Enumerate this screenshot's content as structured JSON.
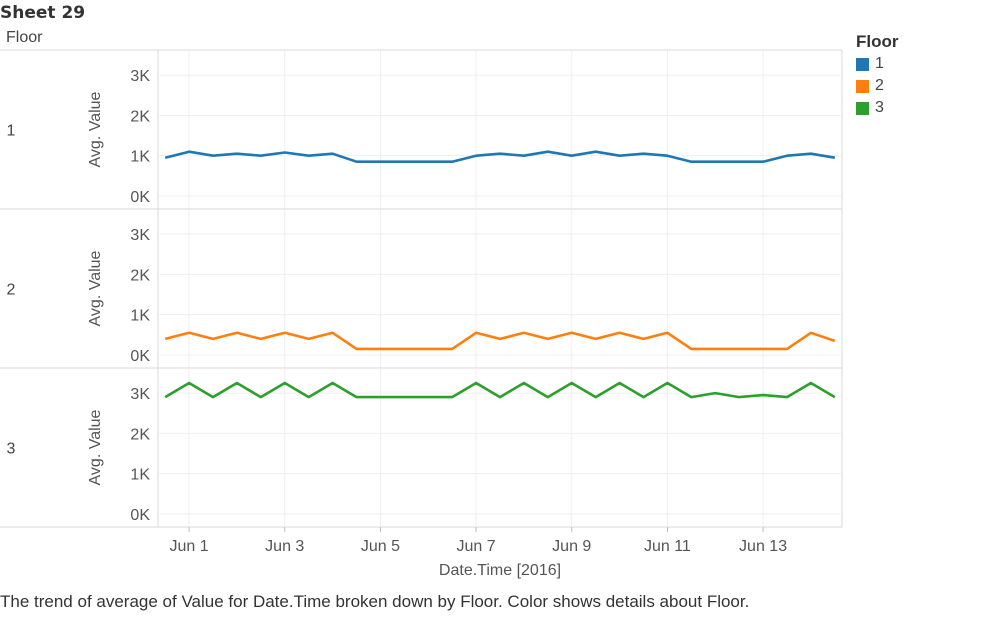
{
  "sheet": {
    "title": "Sheet 29",
    "row_header": "Floor",
    "caption": "The trend of average of Value for Date.Time broken down by Floor.  Color shows details about Floor."
  },
  "legend": {
    "title": "Floor",
    "items": [
      {
        "label": "1",
        "color": "#1f77b4"
      },
      {
        "label": "2",
        "color": "#ff7f0e"
      },
      {
        "label": "3",
        "color": "#2ca02c"
      }
    ]
  },
  "chart_data": {
    "type": "line",
    "title": "Sheet 29",
    "xlabel": "Date.Time [2016]",
    "ylabel": "Avg. Value",
    "x_ticks": [
      "Jun 1",
      "Jun 3",
      "Jun 5",
      "Jun 7",
      "Jun 9",
      "Jun 11",
      "Jun 13"
    ],
    "x_tick_days": [
      1,
      3,
      5,
      7,
      9,
      11,
      13
    ],
    "x_range_days": [
      30.35,
      14.65
    ],
    "ylim": [
      -100,
      3400
    ],
    "y_ticks": [
      0,
      1000,
      2000,
      3000
    ],
    "y_tick_labels": [
      "0K",
      "1K",
      "2K",
      "3K"
    ],
    "grid": true,
    "legend_position": "right",
    "panels": [
      {
        "label": "1",
        "name": "1",
        "color": "#1f77b4",
        "x": [
          "2016-05-31",
          "2016-05-31",
          "2016-06-01",
          "2016-06-01",
          "2016-06-02",
          "2016-06-02",
          "2016-06-03",
          "2016-06-03",
          "2016-06-04",
          "2016-06-04",
          "2016-06-05",
          "2016-06-05",
          "2016-06-06",
          "2016-06-06",
          "2016-06-07",
          "2016-06-07",
          "2016-06-08",
          "2016-06-08",
          "2016-06-09",
          "2016-06-09",
          "2016-06-10",
          "2016-06-10",
          "2016-06-11",
          "2016-06-11",
          "2016-06-12",
          "2016-06-12",
          "2016-06-13",
          "2016-06-13",
          "2016-06-14"
        ],
        "t": [
          30.5,
          31.0,
          31.5,
          32.0,
          32.5,
          33.0,
          33.5,
          34.0,
          34.5,
          35.0,
          35.5,
          36.0,
          36.5,
          37.0,
          37.5,
          38.0,
          38.5,
          39.0,
          39.5,
          40.0,
          40.5,
          41.0,
          41.5,
          42.0,
          42.5,
          43.0,
          43.5,
          44.0,
          44.5
        ],
        "values": [
          950,
          1100,
          1000,
          1050,
          1000,
          1080,
          1000,
          1050,
          850,
          850,
          850,
          850,
          850,
          1000,
          1050,
          1000,
          1100,
          1000,
          1100,
          1000,
          1050,
          1000,
          850,
          850,
          850,
          850,
          1000,
          1050,
          950
        ]
      },
      {
        "label": "2",
        "name": "2",
        "color": "#ff7f0e",
        "x": [
          "2016-05-31",
          "2016-05-31",
          "2016-06-01",
          "2016-06-01",
          "2016-06-02",
          "2016-06-02",
          "2016-06-03",
          "2016-06-03",
          "2016-06-04",
          "2016-06-04",
          "2016-06-05",
          "2016-06-05",
          "2016-06-06",
          "2016-06-06",
          "2016-06-07",
          "2016-06-07",
          "2016-06-08",
          "2016-06-08",
          "2016-06-09",
          "2016-06-09",
          "2016-06-10",
          "2016-06-10",
          "2016-06-11",
          "2016-06-11",
          "2016-06-12",
          "2016-06-12",
          "2016-06-13",
          "2016-06-13",
          "2016-06-14"
        ],
        "t": [
          30.5,
          31.0,
          31.5,
          32.0,
          32.5,
          33.0,
          33.5,
          34.0,
          34.5,
          35.0,
          35.5,
          36.0,
          36.5,
          37.0,
          37.5,
          38.0,
          38.5,
          39.0,
          39.5,
          40.0,
          40.5,
          41.0,
          41.5,
          42.0,
          42.5,
          43.0,
          43.5,
          44.0,
          44.5
        ],
        "values": [
          400,
          550,
          400,
          550,
          400,
          550,
          400,
          550,
          150,
          150,
          150,
          150,
          150,
          550,
          400,
          550,
          400,
          550,
          400,
          550,
          400,
          550,
          150,
          150,
          150,
          150,
          150,
          550,
          350
        ]
      },
      {
        "label": "3",
        "name": "3",
        "color": "#2ca02c",
        "x": [
          "2016-05-31",
          "2016-05-31",
          "2016-06-01",
          "2016-06-01",
          "2016-06-02",
          "2016-06-02",
          "2016-06-03",
          "2016-06-03",
          "2016-06-04",
          "2016-06-04",
          "2016-06-05",
          "2016-06-05",
          "2016-06-06",
          "2016-06-06",
          "2016-06-07",
          "2016-06-07",
          "2016-06-08",
          "2016-06-08",
          "2016-06-09",
          "2016-06-09",
          "2016-06-10",
          "2016-06-10",
          "2016-06-11",
          "2016-06-11",
          "2016-06-12",
          "2016-06-12",
          "2016-06-13",
          "2016-06-13",
          "2016-06-14"
        ],
        "t": [
          30.5,
          31.0,
          31.5,
          32.0,
          32.5,
          33.0,
          33.5,
          34.0,
          34.5,
          35.0,
          35.5,
          36.0,
          36.5,
          37.0,
          37.5,
          38.0,
          38.5,
          39.0,
          39.5,
          40.0,
          40.5,
          41.0,
          41.5,
          42.0,
          42.5,
          43.0,
          43.5,
          44.0,
          44.5
        ],
        "values": [
          2900,
          3250,
          2900,
          3250,
          2900,
          3250,
          2900,
          3250,
          2900,
          2900,
          2900,
          2900,
          2900,
          3250,
          2900,
          3250,
          2900,
          3250,
          2900,
          3250,
          2900,
          3250,
          2900,
          3000,
          2900,
          2950,
          2900,
          3250,
          2900
        ]
      }
    ]
  }
}
